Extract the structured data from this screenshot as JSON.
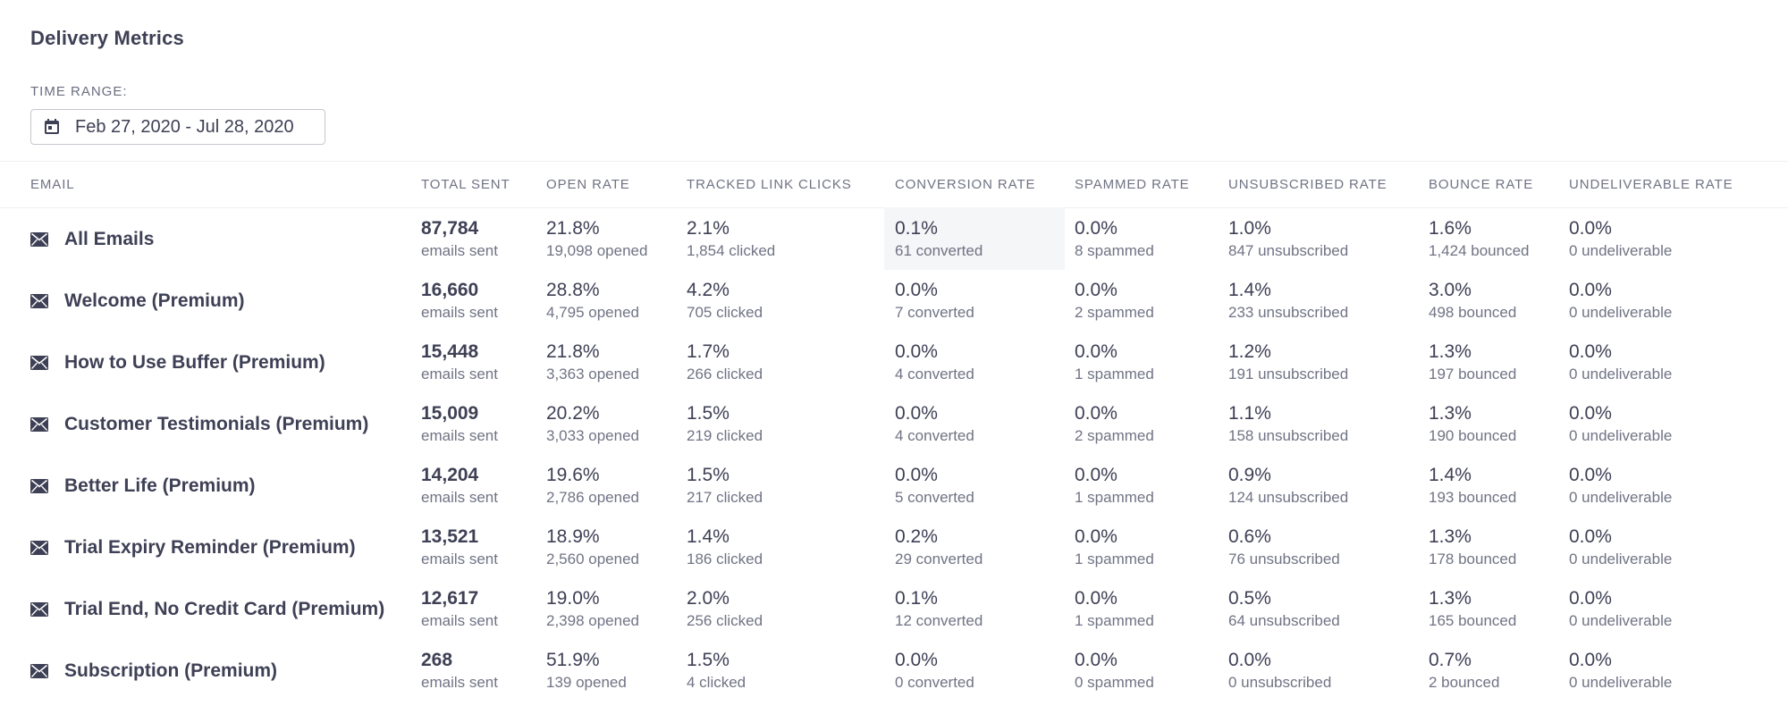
{
  "title": "Delivery Metrics",
  "time_range": {
    "label": "TIME RANGE:",
    "value": "Feb 27, 2020 - Jul 28, 2020",
    "icon": "calendar-icon"
  },
  "table": {
    "columns": [
      "EMAIL",
      "TOTAL SENT",
      "OPEN RATE",
      "TRACKED LINK CLICKS",
      "CONVERSION RATE",
      "SPAMMED RATE",
      "UNSUBSCRIBED RATE",
      "BOUNCE RATE",
      "UNDELIVERABLE RATE"
    ],
    "row_icon": "envelope-icon",
    "rows": [
      {
        "name": "All Emails",
        "cells": [
          {
            "v": "87,784",
            "s": "emails sent"
          },
          {
            "v": "21.8%",
            "s": "19,098 opened"
          },
          {
            "v": "2.1%",
            "s": "1,854 clicked"
          },
          {
            "v": "0.1%",
            "s": "61 converted"
          },
          {
            "v": "0.0%",
            "s": "8 spammed"
          },
          {
            "v": "1.0%",
            "s": "847 unsubscribed"
          },
          {
            "v": "1.6%",
            "s": "1,424 bounced"
          },
          {
            "v": "0.0%",
            "s": "0 undeliverable"
          }
        ]
      },
      {
        "name": "Welcome (Premium)",
        "cells": [
          {
            "v": "16,660",
            "s": "emails sent"
          },
          {
            "v": "28.8%",
            "s": "4,795 opened"
          },
          {
            "v": "4.2%",
            "s": "705 clicked"
          },
          {
            "v": "0.0%",
            "s": "7 converted"
          },
          {
            "v": "0.0%",
            "s": "2 spammed"
          },
          {
            "v": "1.4%",
            "s": "233 unsubscribed"
          },
          {
            "v": "3.0%",
            "s": "498 bounced"
          },
          {
            "v": "0.0%",
            "s": "0 undeliverable"
          }
        ]
      },
      {
        "name": "How to Use Buffer (Premium)",
        "cells": [
          {
            "v": "15,448",
            "s": "emails sent"
          },
          {
            "v": "21.8%",
            "s": "3,363 opened"
          },
          {
            "v": "1.7%",
            "s": "266 clicked"
          },
          {
            "v": "0.0%",
            "s": "4 converted"
          },
          {
            "v": "0.0%",
            "s": "1 spammed"
          },
          {
            "v": "1.2%",
            "s": "191 unsubscribed"
          },
          {
            "v": "1.3%",
            "s": "197 bounced"
          },
          {
            "v": "0.0%",
            "s": "0 undeliverable"
          }
        ]
      },
      {
        "name": "Customer Testimonials (Premium)",
        "cells": [
          {
            "v": "15,009",
            "s": "emails sent"
          },
          {
            "v": "20.2%",
            "s": "3,033 opened"
          },
          {
            "v": "1.5%",
            "s": "219 clicked"
          },
          {
            "v": "0.0%",
            "s": "4 converted"
          },
          {
            "v": "0.0%",
            "s": "2 spammed"
          },
          {
            "v": "1.1%",
            "s": "158 unsubscribed"
          },
          {
            "v": "1.3%",
            "s": "190 bounced"
          },
          {
            "v": "0.0%",
            "s": "0 undeliverable"
          }
        ]
      },
      {
        "name": "Better Life (Premium)",
        "cells": [
          {
            "v": "14,204",
            "s": "emails sent"
          },
          {
            "v": "19.6%",
            "s": "2,786 opened"
          },
          {
            "v": "1.5%",
            "s": "217 clicked"
          },
          {
            "v": "0.0%",
            "s": "5 converted"
          },
          {
            "v": "0.0%",
            "s": "1 spammed"
          },
          {
            "v": "0.9%",
            "s": "124 unsubscribed"
          },
          {
            "v": "1.4%",
            "s": "193 bounced"
          },
          {
            "v": "0.0%",
            "s": "0 undeliverable"
          }
        ]
      },
      {
        "name": "Trial Expiry Reminder (Premium)",
        "cells": [
          {
            "v": "13,521",
            "s": "emails sent"
          },
          {
            "v": "18.9%",
            "s": "2,560 opened"
          },
          {
            "v": "1.4%",
            "s": "186 clicked"
          },
          {
            "v": "0.2%",
            "s": "29 converted"
          },
          {
            "v": "0.0%",
            "s": "1 spammed"
          },
          {
            "v": "0.6%",
            "s": "76 unsubscribed"
          },
          {
            "v": "1.3%",
            "s": "178 bounced"
          },
          {
            "v": "0.0%",
            "s": "0 undeliverable"
          }
        ]
      },
      {
        "name": "Trial End, No Credit Card (Premium)",
        "cells": [
          {
            "v": "12,617",
            "s": "emails sent"
          },
          {
            "v": "19.0%",
            "s": "2,398 opened"
          },
          {
            "v": "2.0%",
            "s": "256 clicked"
          },
          {
            "v": "0.1%",
            "s": "12 converted"
          },
          {
            "v": "0.0%",
            "s": "1 spammed"
          },
          {
            "v": "0.5%",
            "s": "64 unsubscribed"
          },
          {
            "v": "1.3%",
            "s": "165 bounced"
          },
          {
            "v": "0.0%",
            "s": "0 undeliverable"
          }
        ]
      },
      {
        "name": "Subscription (Premium)",
        "cells": [
          {
            "v": "268",
            "s": "emails sent"
          },
          {
            "v": "51.9%",
            "s": "139 opened"
          },
          {
            "v": "1.5%",
            "s": "4 clicked"
          },
          {
            "v": "0.0%",
            "s": "0 converted"
          },
          {
            "v": "0.0%",
            "s": "0 spammed"
          },
          {
            "v": "0.0%",
            "s": "0 unsubscribed"
          },
          {
            "v": "0.7%",
            "s": "2 bounced"
          },
          {
            "v": "0.0%",
            "s": "0 undeliverable"
          }
        ]
      }
    ]
  }
}
